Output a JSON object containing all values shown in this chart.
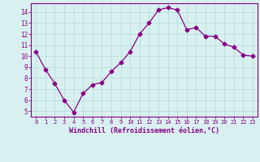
{
  "x": [
    0,
    1,
    2,
    3,
    4,
    5,
    6,
    7,
    8,
    9,
    10,
    11,
    12,
    13,
    14,
    15,
    16,
    17,
    18,
    19,
    20,
    21,
    22,
    23
  ],
  "y": [
    10.4,
    8.8,
    7.5,
    6.0,
    4.9,
    6.6,
    7.4,
    7.6,
    8.6,
    9.4,
    10.4,
    12.0,
    13.0,
    14.2,
    14.4,
    14.2,
    12.4,
    12.6,
    11.8,
    11.8,
    11.1,
    10.8,
    10.1,
    10.0
  ],
  "line_color": "#880088",
  "marker": "D",
  "marker_size": 2.5,
  "bg_color": "#d8f0f0",
  "grid_color": "#b8dede",
  "xlabel": "Windchill (Refroidissement éolien,°C)",
  "xlabel_color": "#880088",
  "tick_color": "#880088",
  "ylabel_ticks": [
    5,
    6,
    7,
    8,
    9,
    10,
    11,
    12,
    13,
    14
  ],
  "xlim": [
    -0.5,
    23.5
  ],
  "ylim": [
    4.5,
    14.8
  ],
  "title": ""
}
